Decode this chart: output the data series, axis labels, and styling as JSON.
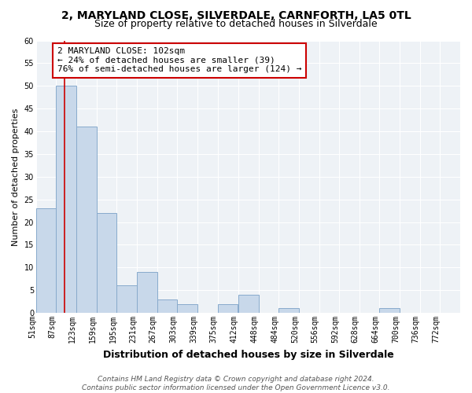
{
  "title": "2, MARYLAND CLOSE, SILVERDALE, CARNFORTH, LA5 0TL",
  "subtitle": "Size of property relative to detached houses in Silverdale",
  "xlabel": "Distribution of detached houses by size in Silverdale",
  "ylabel": "Number of detached properties",
  "bin_labels": [
    "51sqm",
    "87sqm",
    "123sqm",
    "159sqm",
    "195sqm",
    "231sqm",
    "267sqm",
    "303sqm",
    "339sqm",
    "375sqm",
    "412sqm",
    "448sqm",
    "484sqm",
    "520sqm",
    "556sqm",
    "592sqm",
    "628sqm",
    "664sqm",
    "700sqm",
    "736sqm",
    "772sqm"
  ],
  "bin_edges": [
    51,
    87,
    123,
    159,
    195,
    231,
    267,
    303,
    339,
    375,
    412,
    448,
    484,
    520,
    556,
    592,
    628,
    664,
    700,
    736,
    772
  ],
  "bar_heights": [
    23,
    50,
    41,
    22,
    6,
    9,
    3,
    2,
    0,
    2,
    4,
    0,
    1,
    0,
    0,
    0,
    0,
    1,
    0,
    0
  ],
  "bar_color": "#c8d8ea",
  "bar_edgecolor": "#88aacc",
  "bar_linewidth": 0.7,
  "vline_x": 102,
  "vline_color": "#cc0000",
  "vline_linewidth": 1.2,
  "annotation_text": "2 MARYLAND CLOSE: 102sqm\n← 24% of detached houses are smaller (39)\n76% of semi-detached houses are larger (124) →",
  "annotation_box_edgecolor": "#cc0000",
  "ylim": [
    0,
    60
  ],
  "yticks": [
    0,
    5,
    10,
    15,
    20,
    25,
    30,
    35,
    40,
    45,
    50,
    55,
    60
  ],
  "background_color": "#eef2f6",
  "grid_color": "#ffffff",
  "footer_text": "Contains HM Land Registry data © Crown copyright and database right 2024.\nContains public sector information licensed under the Open Government Licence v3.0.",
  "title_fontsize": 10,
  "subtitle_fontsize": 9,
  "xlabel_fontsize": 9,
  "ylabel_fontsize": 8,
  "tick_fontsize": 7,
  "annotation_fontsize": 8,
  "footer_fontsize": 6.5
}
